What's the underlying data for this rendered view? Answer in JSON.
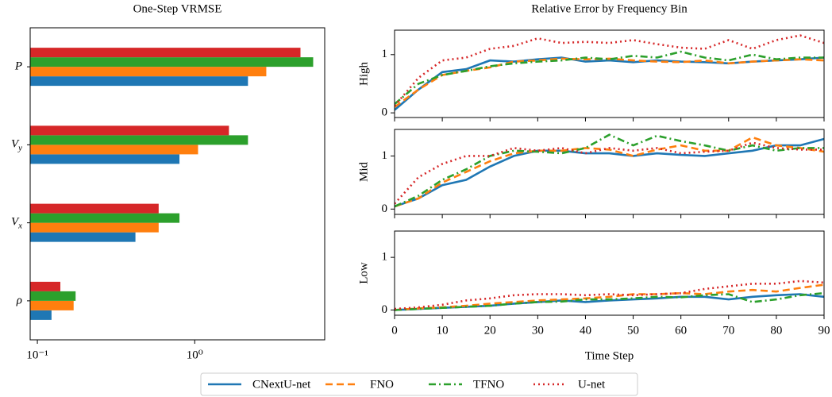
{
  "chart_data": [
    {
      "type": "hbar",
      "title": "One-Step VRMSE",
      "log_x": true,
      "categories": [
        "P",
        "V_y",
        "V_x",
        "ρ"
      ],
      "series": [
        {
          "name": "CNextU-net",
          "color": "#1f77b4",
          "values": [
            2.18,
            0.8,
            0.42,
            0.123
          ]
        },
        {
          "name": "FNO",
          "color": "#ff7f0e",
          "values": [
            2.85,
            1.05,
            0.59,
            0.17
          ]
        },
        {
          "name": "TFNO",
          "color": "#2ca02c",
          "values": [
            5.66,
            2.18,
            0.8,
            0.175
          ]
        },
        {
          "name": "U-net",
          "color": "#d62728",
          "values": [
            4.7,
            1.65,
            0.59,
            0.14
          ]
        }
      ],
      "xlim": [
        0.09,
        6.7
      ],
      "xticks": [
        {
          "value": 0.1,
          "label": "10⁻¹"
        },
        {
          "value": 1,
          "label": "10⁰"
        }
      ]
    },
    {
      "type": "line",
      "title": "Relative Error by Frequency Bin",
      "ylabel": "High",
      "show_xtick_labels": false,
      "x": [
        0,
        5,
        10,
        15,
        20,
        25,
        30,
        35,
        40,
        45,
        50,
        55,
        60,
        65,
        70,
        75,
        80,
        85,
        90
      ],
      "series": [
        {
          "color": "#1f77b4",
          "dash": "solid",
          "values": [
            0.05,
            0.4,
            0.7,
            0.75,
            0.9,
            0.88,
            0.92,
            0.95,
            0.88,
            0.9,
            0.87,
            0.9,
            0.88,
            0.87,
            0.85,
            0.88,
            0.9,
            0.92,
            0.95
          ]
        },
        {
          "color": "#ff7f0e",
          "dash": "dashed",
          "values": [
            0.1,
            0.4,
            0.65,
            0.72,
            0.78,
            0.88,
            0.9,
            0.93,
            0.92,
            0.93,
            0.9,
            0.88,
            0.87,
            0.9,
            0.85,
            0.88,
            0.9,
            0.92,
            0.9
          ]
        },
        {
          "color": "#2ca02c",
          "dash": "dashdot",
          "values": [
            0.15,
            0.5,
            0.65,
            0.72,
            0.8,
            0.85,
            0.88,
            0.9,
            0.95,
            0.92,
            0.98,
            0.95,
            1.05,
            0.95,
            0.9,
            1.0,
            0.92,
            0.95,
            0.95
          ]
        },
        {
          "color": "#d62728",
          "dash": "dotted",
          "values": [
            0.12,
            0.6,
            0.9,
            0.95,
            1.1,
            1.15,
            1.28,
            1.2,
            1.22,
            1.2,
            1.25,
            1.18,
            1.12,
            1.1,
            1.25,
            1.1,
            1.25,
            1.33,
            1.2
          ]
        }
      ],
      "xlim": [
        0,
        90
      ],
      "xticks": [
        0,
        10,
        20,
        30,
        40,
        50,
        60,
        70,
        80,
        90
      ],
      "ylim": [
        -0.08,
        1.42
      ],
      "yticks": [
        0,
        1
      ]
    },
    {
      "type": "line",
      "ylabel": "Mid",
      "show_xtick_labels": false,
      "x": [
        0,
        5,
        10,
        15,
        20,
        25,
        30,
        35,
        40,
        45,
        50,
        55,
        60,
        65,
        70,
        75,
        80,
        85,
        90
      ],
      "series": [
        {
          "color": "#1f77b4",
          "dash": "solid",
          "values": [
            0.05,
            0.2,
            0.45,
            0.55,
            0.8,
            1.0,
            1.1,
            1.1,
            1.05,
            1.05,
            1.0,
            1.05,
            1.02,
            1.0,
            1.05,
            1.1,
            1.2,
            1.2,
            1.32
          ]
        },
        {
          "color": "#ff7f0e",
          "dash": "dashed",
          "values": [
            0.05,
            0.2,
            0.5,
            0.7,
            0.9,
            1.05,
            1.1,
            1.1,
            1.15,
            1.12,
            1.0,
            1.12,
            1.2,
            1.1,
            1.1,
            1.35,
            1.2,
            1.15,
            1.08
          ]
        },
        {
          "color": "#2ca02c",
          "dash": "dashdot",
          "values": [
            0.05,
            0.25,
            0.55,
            0.75,
            1.0,
            1.1,
            1.08,
            1.05,
            1.15,
            1.4,
            1.2,
            1.38,
            1.28,
            1.2,
            1.1,
            1.2,
            1.1,
            1.15,
            1.15
          ]
        },
        {
          "color": "#d62728",
          "dash": "dotted",
          "values": [
            0.1,
            0.6,
            0.85,
            1.0,
            1.0,
            1.15,
            1.1,
            1.15,
            1.05,
            1.15,
            1.1,
            1.15,
            1.05,
            1.08,
            1.1,
            1.25,
            1.15,
            1.12,
            1.12
          ]
        }
      ],
      "xlim": [
        0,
        90
      ],
      "xticks": [
        0,
        10,
        20,
        30,
        40,
        50,
        60,
        70,
        80,
        90
      ],
      "ylim": [
        -0.1,
        1.5
      ],
      "yticks": [
        0,
        1
      ]
    },
    {
      "type": "line",
      "ylabel": "Low",
      "xlabel": "Time Step",
      "show_xtick_labels": true,
      "x": [
        0,
        5,
        10,
        15,
        20,
        25,
        30,
        35,
        40,
        45,
        50,
        55,
        60,
        65,
        70,
        75,
        80,
        85,
        90
      ],
      "series": [
        {
          "color": "#1f77b4",
          "dash": "solid",
          "values": [
            0,
            0.02,
            0.04,
            0.06,
            0.08,
            0.12,
            0.15,
            0.18,
            0.15,
            0.18,
            0.2,
            0.22,
            0.25,
            0.25,
            0.2,
            0.25,
            0.28,
            0.3,
            0.25
          ]
        },
        {
          "color": "#ff7f0e",
          "dash": "dashed",
          "values": [
            0,
            0.03,
            0.05,
            0.08,
            0.12,
            0.15,
            0.18,
            0.2,
            0.22,
            0.25,
            0.3,
            0.3,
            0.32,
            0.3,
            0.35,
            0.38,
            0.35,
            0.42,
            0.48
          ]
        },
        {
          "color": "#2ca02c",
          "dash": "dashdot",
          "values": [
            0,
            0.02,
            0.04,
            0.06,
            0.08,
            0.12,
            0.15,
            0.16,
            0.2,
            0.2,
            0.22,
            0.25,
            0.24,
            0.28,
            0.3,
            0.15,
            0.2,
            0.28,
            0.32
          ]
        },
        {
          "color": "#d62728",
          "dash": "dotted",
          "values": [
            0.02,
            0.05,
            0.1,
            0.18,
            0.22,
            0.28,
            0.3,
            0.3,
            0.28,
            0.3,
            0.28,
            0.3,
            0.32,
            0.4,
            0.45,
            0.5,
            0.5,
            0.55,
            0.52
          ]
        }
      ],
      "xlim": [
        0,
        90
      ],
      "xticks": [
        0,
        10,
        20,
        30,
        40,
        50,
        60,
        70,
        80,
        90
      ],
      "ylim": [
        -0.1,
        1.5
      ],
      "yticks": [
        0,
        1
      ]
    }
  ]
}
